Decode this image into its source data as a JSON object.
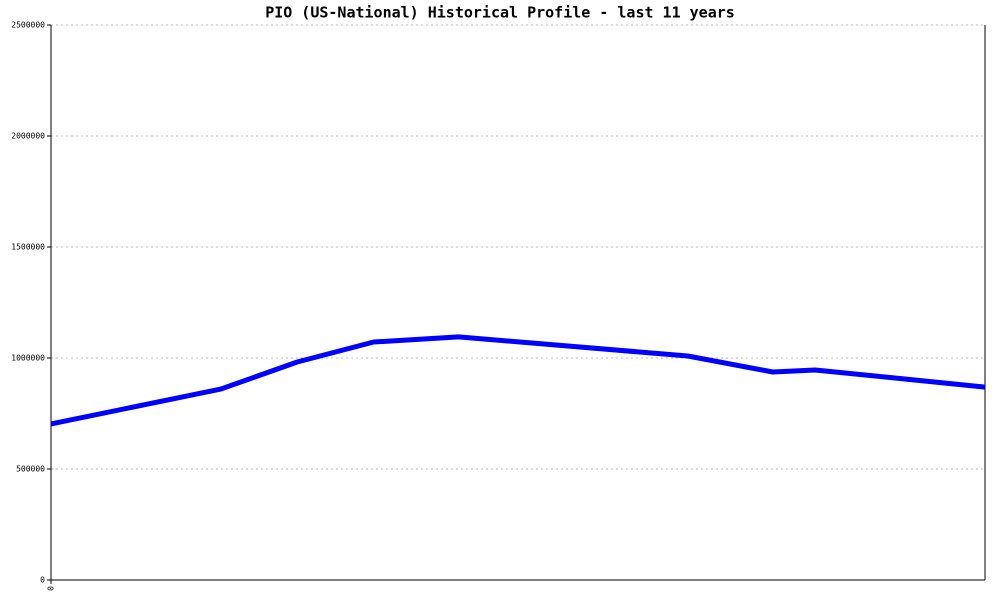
{
  "chart_data": {
    "type": "line",
    "title": "PIO (US-National) Historical Profile - last 11 years",
    "x": [
      0,
      2.0,
      2.9,
      3.8,
      4.8,
      7.5,
      8.5,
      9.0,
      11
    ],
    "series": [
      {
        "name": "PIO",
        "color": "#0000ff",
        "values": [
          703000,
          860000,
          982000,
          1072000,
          1095000,
          1009000,
          937000,
          946000,
          869000
        ]
      }
    ],
    "xlim": [
      0,
      11
    ],
    "xticks": [
      0
    ],
    "ylim": [
      0,
      2500000
    ],
    "yticks": [
      0,
      500000,
      1000000,
      1500000,
      2000000,
      2500000
    ],
    "grid": true
  }
}
